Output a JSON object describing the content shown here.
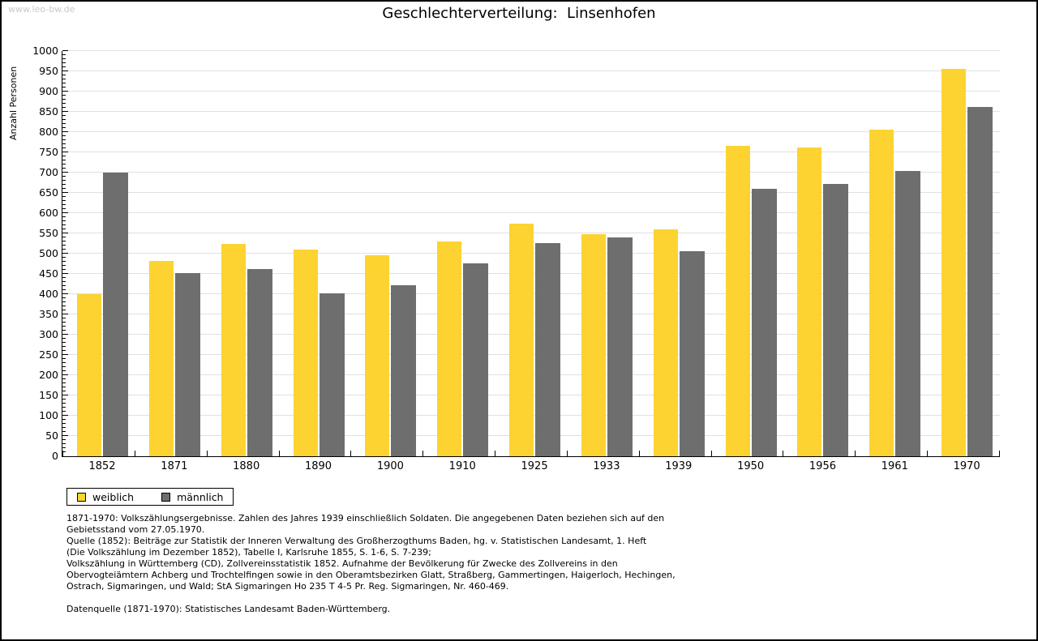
{
  "watermark": "www.leo-bw.de",
  "chart_data": {
    "type": "bar",
    "title": "Geschlechterverteilung:  Linsenhofen",
    "ylabel": "Anzahl Personen",
    "xlabel": "",
    "ylim": [
      0,
      1000
    ],
    "ytick_step": 50,
    "y_minor_step": 10,
    "grid": true,
    "legend_position": "bottom-left",
    "categories": [
      "1852",
      "1871",
      "1880",
      "1890",
      "1900",
      "1910",
      "1925",
      "1933",
      "1939",
      "1950",
      "1956",
      "1961",
      "1970"
    ],
    "series": [
      {
        "name": "weiblich",
        "color": "#fcd331",
        "values": [
          400,
          483,
          525,
          510,
          496,
          531,
          575,
          548,
          560,
          766,
          762,
          807,
          956
        ]
      },
      {
        "name": "männlich",
        "color": "#6e6e6e",
        "values": [
          700,
          453,
          462,
          403,
          423,
          477,
          526,
          540,
          507,
          661,
          673,
          704,
          862
        ]
      }
    ]
  },
  "colors": {
    "axis": "#000000",
    "gridline": "#e0e0e0",
    "watermark": "#c9c9c9",
    "weiblich": "#fcd331",
    "maennlich": "#6e6e6e"
  },
  "footnotes": {
    "lines": [
      "1871-1970: Volkszählungsergebnisse. Zahlen des Jahres 1939 einschließlich Soldaten. Die angegebenen Daten beziehen sich auf den",
      "Gebietsstand vom 27.05.1970.",
      "Quelle (1852): Beiträge zur Statistik der Inneren Verwaltung des Großherzogthums Baden, hg. v. Statistischen Landesamt, 1. Heft",
      "(Die Volkszählung im Dezember 1852), Tabelle I, Karlsruhe 1855, S. 1-6, S. 7-239;",
      "Volkszählung in Württemberg (CD), Zollvereinsstatistik 1852. Aufnahme der Bevölkerung für Zwecke des Zollvereins in den",
      "Obervogteiämtern Achberg und Trochtelfingen sowie in den Oberamtsbezirken Glatt, Straßberg, Gammertingen, Haigerloch, Hechingen,",
      "Ostrach, Sigmaringen, und Wald; StA Sigmaringen Ho 235 T 4-5 Pr. Reg. Sigmaringen, Nr. 460-469."
    ],
    "datasource": "Datenquelle (1871-1970): Statistisches Landesamt Baden-Württemberg."
  }
}
